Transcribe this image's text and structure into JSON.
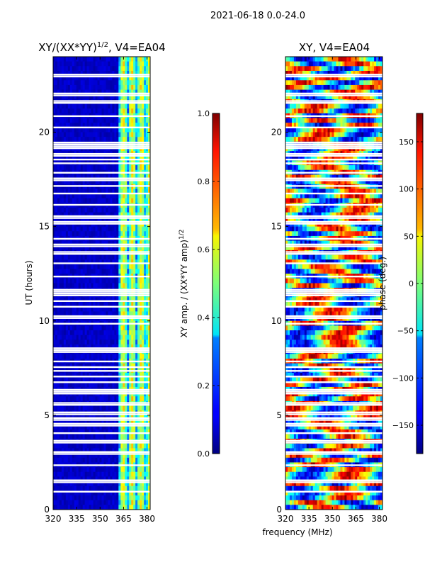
{
  "suptitle": "2021-06-18 0.0-24.0",
  "chart_data": [
    {
      "type": "heatmap",
      "title": "XY/(XX*YY)",
      "title_exponent": "1/2",
      "title_suffix": ", V4=EA04",
      "xlabel": "frequency (MHz)",
      "ylabel": "UT (hours)",
      "xlim": [
        320,
        382
      ],
      "ylim": [
        0,
        24
      ],
      "x_ticks": [
        "320",
        "335",
        "350",
        "365",
        "380"
      ],
      "y_ticks": [
        "0",
        "5",
        "10",
        "15",
        "20"
      ],
      "colorscale": "jet",
      "colorbar": {
        "label": "XY amp. / (XX*YY amp)",
        "label_exponent": "1/2",
        "range": [
          0.0,
          1.0
        ],
        "ticks": [
          "0.0",
          "0.2",
          "0.4",
          "0.6",
          "0.8",
          "1.0"
        ]
      },
      "flagged_hours": [
        0.95,
        1.45,
        1.55,
        2.35,
        2.95,
        3.05,
        3.55,
        3.65,
        4.05,
        4.45,
        4.55,
        4.75,
        4.85,
        5.05,
        5.15,
        5.55,
        5.65,
        6.15,
        6.25,
        6.35,
        6.75,
        7.05,
        7.35,
        7.55,
        7.85,
        8.35,
        8.45,
        8.55,
        9.85,
        10.15,
        10.25,
        10.75,
        11.05,
        11.35,
        11.45,
        11.55,
        11.65,
        12.35,
        13.05,
        13.55,
        13.65,
        13.95,
        14.05,
        14.35,
        15.15,
        15.25,
        15.45,
        15.55,
        16.15,
        16.75,
        17.15,
        17.45,
        17.55,
        17.85,
        18.35,
        18.55,
        18.75,
        18.85,
        19.15,
        19.25,
        19.35,
        19.45,
        20.25,
        20.85,
        21.55,
        21.65,
        21.95,
        22.05,
        22.95,
        23.05
      ]
    },
    {
      "type": "heatmap",
      "title": "XY, V4=EA04",
      "xlabel": "frequency (MHz)",
      "ylabel": "",
      "xlim": [
        320,
        382
      ],
      "ylim": [
        0,
        24
      ],
      "x_ticks": [
        "320",
        "335",
        "350",
        "365",
        "380"
      ],
      "y_ticks": [
        "0",
        "5",
        "10",
        "15",
        "20"
      ],
      "colorscale": "jet",
      "colorbar": {
        "label": "phase (deg.)",
        "range": [
          -180,
          180
        ],
        "ticks": [
          "−150",
          "−100",
          "−50",
          "0",
          "50",
          "100",
          "150"
        ]
      },
      "flagged_hours": [
        0.95,
        1.45,
        1.55,
        2.35,
        2.95,
        3.05,
        3.55,
        3.65,
        4.05,
        4.45,
        4.55,
        4.75,
        4.85,
        5.05,
        5.15,
        5.55,
        5.65,
        6.15,
        6.25,
        6.35,
        6.75,
        7.05,
        7.35,
        7.55,
        7.85,
        8.35,
        8.45,
        8.55,
        9.85,
        10.15,
        10.25,
        10.75,
        11.05,
        11.35,
        11.45,
        11.55,
        11.65,
        12.35,
        13.05,
        13.55,
        13.65,
        13.95,
        14.05,
        14.35,
        15.15,
        15.25,
        15.45,
        15.55,
        16.15,
        16.75,
        17.15,
        17.45,
        17.55,
        17.85,
        18.35,
        18.55,
        18.75,
        18.85,
        19.15,
        19.25,
        19.35,
        19.45,
        20.25,
        20.85,
        21.55,
        21.65,
        21.95,
        22.05,
        22.95,
        23.05
      ]
    }
  ]
}
